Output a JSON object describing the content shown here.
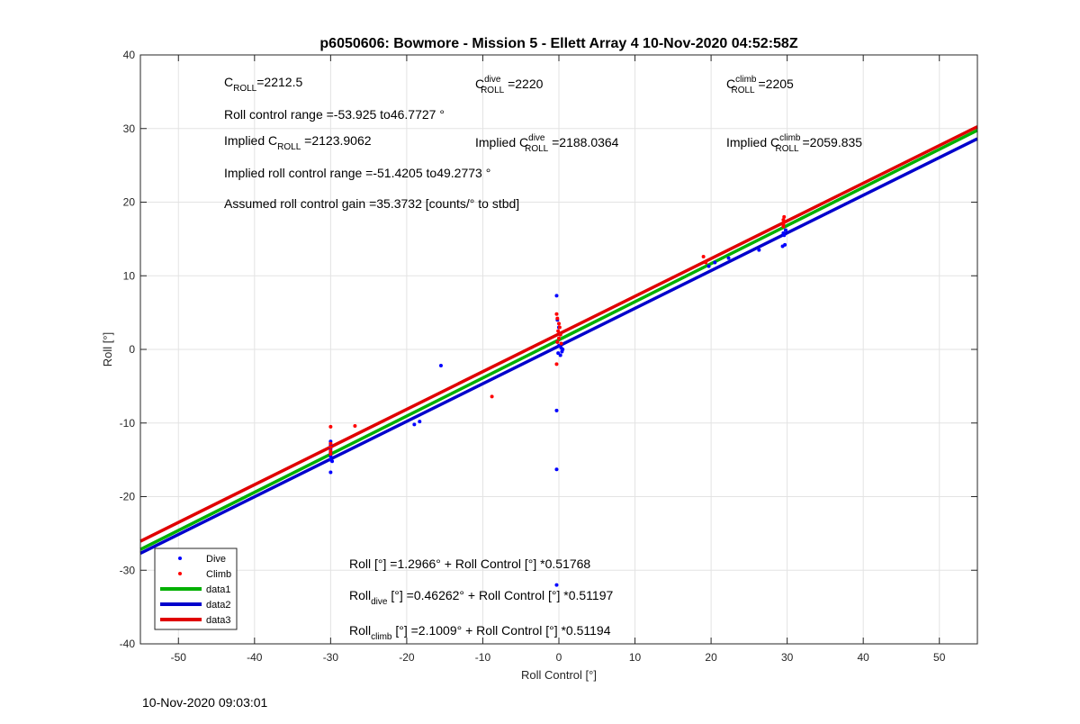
{
  "chart_data": {
    "type": "scatter",
    "title": "p6050606: Bowmore - Mission 5 - Ellett Array 4 10-Nov-2020 04:52:58Z",
    "xlabel": "Roll Control [°]",
    "ylabel": "Roll [°]",
    "xlim": [
      -55,
      55
    ],
    "ylim": [
      -40,
      40
    ],
    "xticks": [
      -50,
      -40,
      -30,
      -20,
      -10,
      0,
      10,
      20,
      30,
      40,
      50
    ],
    "yticks": [
      -40,
      -30,
      -20,
      -10,
      0,
      10,
      20,
      30,
      40
    ],
    "grid": true,
    "legend_position": "bottom-left",
    "legend": [
      {
        "label": "Dive",
        "kind": "marker",
        "color": "#0000ff"
      },
      {
        "label": "Climb",
        "kind": "marker",
        "color": "#ff0000"
      },
      {
        "label": "data1",
        "kind": "line",
        "color": "#00b000"
      },
      {
        "label": "data2",
        "kind": "line",
        "color": "#0000cc"
      },
      {
        "label": "data3",
        "kind": "line",
        "color": "#e00000"
      }
    ],
    "series": [
      {
        "name": "Dive",
        "kind": "scatter",
        "color": "#0000ff",
        "points": [
          [
            -30,
            -12.5
          ],
          [
            -30,
            -13
          ],
          [
            -30,
            -13.5
          ],
          [
            -30,
            -14
          ],
          [
            -30,
            -14.5
          ],
          [
            -30,
            -15
          ],
          [
            -29.8,
            -15.2
          ],
          [
            -30,
            -16.7
          ],
          [
            -19,
            -10.2
          ],
          [
            -18.3,
            -9.8
          ],
          [
            -15.5,
            -2.2
          ],
          [
            -0.3,
            7.3
          ],
          [
            -0.3,
            -8.3
          ],
          [
            -0.3,
            -16.3
          ],
          [
            -0.3,
            -32
          ],
          [
            -0.2,
            4.0
          ],
          [
            0,
            3.0
          ],
          [
            0.2,
            2.0
          ],
          [
            -0.2,
            1.0
          ],
          [
            0,
            0.5
          ],
          [
            0.3,
            0.2
          ],
          [
            0.5,
            0
          ],
          [
            -0.1,
            -0.5
          ],
          [
            0.2,
            -0.8
          ],
          [
            0.4,
            -0.3
          ],
          [
            19.7,
            11.3
          ],
          [
            20.5,
            11.8
          ],
          [
            22.3,
            12.4
          ],
          [
            26.3,
            13.5
          ],
          [
            29.4,
            14.0
          ],
          [
            29.7,
            14.2
          ],
          [
            29.6,
            15.5
          ],
          [
            29.5,
            15.8
          ],
          [
            29.8,
            16.2
          ]
        ]
      },
      {
        "name": "Climb",
        "kind": "scatter",
        "color": "#ff0000",
        "points": [
          [
            -30,
            -10.5
          ],
          [
            -30,
            -12.8
          ],
          [
            -30,
            -13.3
          ],
          [
            -30,
            -13.8
          ],
          [
            -30,
            -14.2
          ],
          [
            -26.8,
            -10.4
          ],
          [
            -8.8,
            -6.4
          ],
          [
            -0.3,
            4.8
          ],
          [
            -0.2,
            4.2
          ],
          [
            0,
            3.5
          ],
          [
            0.1,
            3.0
          ],
          [
            -0.1,
            2.5
          ],
          [
            0.2,
            2.0
          ],
          [
            0,
            1.5
          ],
          [
            -0.2,
            1.0
          ],
          [
            0.3,
            0.8
          ],
          [
            -0.3,
            -2.0
          ],
          [
            19,
            12.6
          ],
          [
            19.3,
            11.8
          ],
          [
            29.5,
            16.7
          ],
          [
            29.5,
            17.0
          ],
          [
            29.6,
            17.3
          ],
          [
            29.5,
            17.6
          ],
          [
            29.6,
            18.0
          ]
        ]
      },
      {
        "name": "data1",
        "kind": "line",
        "color": "#00b000",
        "intercept": 1.2966,
        "slope": 0.51768
      },
      {
        "name": "data2",
        "kind": "line",
        "color": "#0000cc",
        "intercept": 0.46262,
        "slope": 0.51197
      },
      {
        "name": "data3",
        "kind": "line",
        "color": "#e00000",
        "intercept": 2.1009,
        "slope": 0.51194
      }
    ],
    "annotations": {
      "c_roll": {
        "main": "C",
        "sub": "ROLL",
        "sup": "",
        "value": "=2212.5"
      },
      "c_dive": {
        "main": "C",
        "sub": "ROLL",
        "sup": "dive",
        "value": " =2220"
      },
      "c_climb": {
        "main": "C",
        "sub": "ROLL",
        "sup": "climb",
        "value": " =2205"
      },
      "roll_range": "Roll control range =-53.925 to46.7727 °",
      "implied_c": {
        "prefix": "Implied C",
        "sub": "ROLL",
        "sup": "",
        "value": " =2123.9062"
      },
      "implied_c_dive": {
        "prefix": "Implied C",
        "sub": "ROLL",
        "sup": "dive",
        "value": " =2188.0364"
      },
      "implied_c_climb": {
        "prefix": "Implied C",
        "sub": "ROLL",
        "sup": "climb",
        "value": " =2059.835"
      },
      "implied_range": "Implied roll control range =-51.4205 to49.2773 °",
      "gain": "Assumed roll control gain =35.3732 [counts/° to stbd]",
      "fit_all": {
        "main": "Roll",
        "sub": "",
        "rest": " [°] =1.2966° + Roll Control [°] *0.51768"
      },
      "fit_dive": {
        "main": "Roll",
        "sub": "dive",
        "rest": " [°] =0.46262° + Roll Control [°] *0.51197"
      },
      "fit_climb": {
        "main": "Roll",
        "sub": "climb",
        "rest": " [°] =2.1009° + Roll Control [°] *0.51194"
      }
    }
  },
  "footer": {
    "timestamp": "10-Nov-2020 09:03:01"
  }
}
